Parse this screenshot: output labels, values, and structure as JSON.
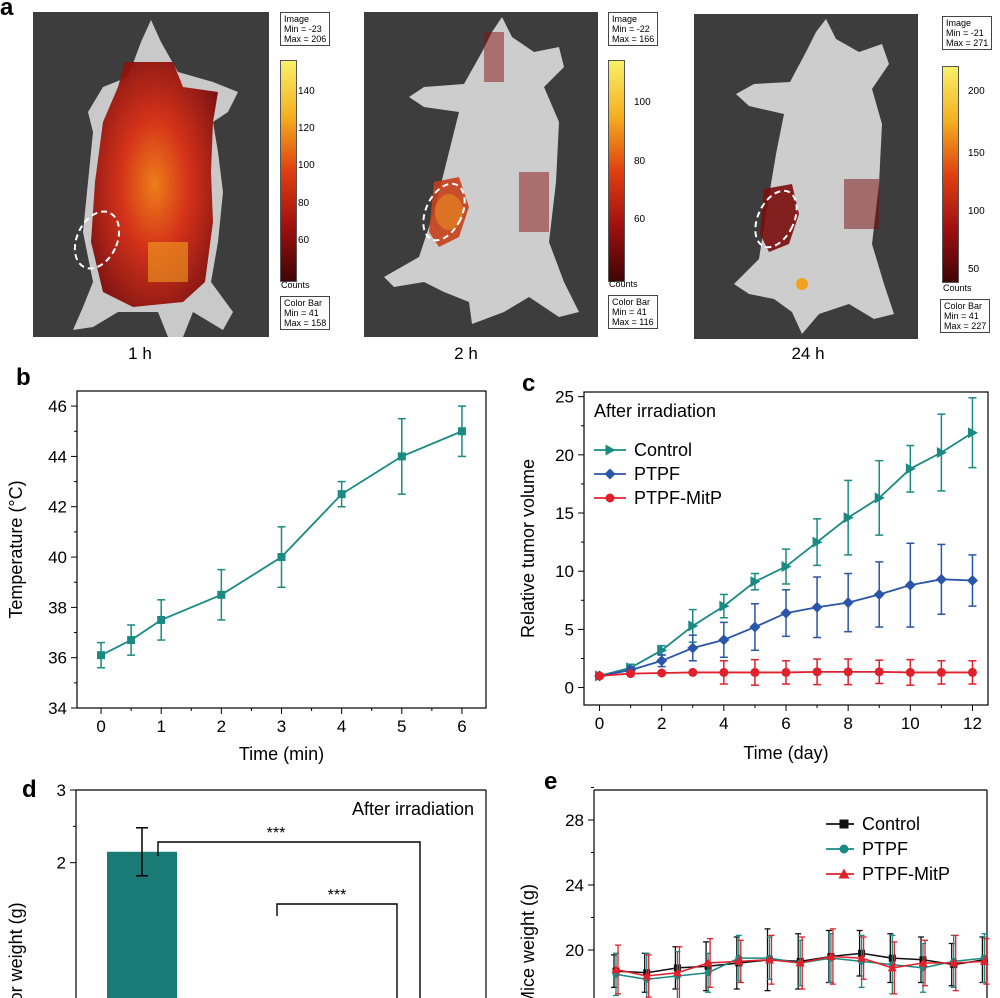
{
  "panel_a": {
    "letter": "a",
    "images": [
      {
        "time": "1 h",
        "image_box": [
          "Image",
          "Min = -23",
          "Max = 206"
        ],
        "colorbar_box": [
          "Color Bar",
          "Min = 41",
          "Max = 158"
        ],
        "ticks": [
          "140",
          "120",
          "100",
          "80",
          "60"
        ],
        "counts": "Counts"
      },
      {
        "time": "2 h",
        "image_box": [
          "Image",
          "Min = -22",
          "Max = 166"
        ],
        "colorbar_box": [
          "Color Bar",
          "Min = 41",
          "Max = 116"
        ],
        "ticks": [
          "100",
          "80",
          "60"
        ],
        "counts": "Counts"
      },
      {
        "time": "24 h",
        "image_box": [
          "Image",
          "Min = -21",
          "Max = 271"
        ],
        "colorbar_box": [
          "Color Bar",
          "Min = 41",
          "Max = 227"
        ],
        "ticks": [
          "200",
          "150",
          "100",
          "50"
        ],
        "counts": "Counts"
      }
    ]
  },
  "chart_data": [
    {
      "panel": "b",
      "type": "line",
      "xlabel": "Time (min)",
      "ylabel": "Temperature (°C)",
      "xlim": [
        -0.4,
        6.4
      ],
      "ylim": [
        34,
        46.6
      ],
      "xticks": [
        0,
        1,
        2,
        3,
        4,
        5,
        6
      ],
      "yticks": [
        34,
        36,
        38,
        40,
        42,
        44,
        46
      ],
      "color": "#1a8a84",
      "x": [
        0,
        0.5,
        1,
        2,
        3,
        4,
        5,
        6
      ],
      "y": [
        36.1,
        36.7,
        37.5,
        38.5,
        40.0,
        42.5,
        44.0,
        45.0
      ],
      "err": [
        0.5,
        0.6,
        0.8,
        1.0,
        1.2,
        0.5,
        1.5,
        1.0
      ]
    },
    {
      "panel": "c",
      "type": "line",
      "title": "After irradiation",
      "xlabel": "Time (day)",
      "ylabel": "Relative tumor volume",
      "xlim": [
        -0.5,
        12.5
      ],
      "ylim": [
        -1.5,
        25.4
      ],
      "xticks": [
        0,
        2,
        4,
        6,
        8,
        10,
        12
      ],
      "yticks": [
        0,
        5,
        10,
        15,
        20,
        25
      ],
      "legend": "top-left",
      "x": [
        0,
        1,
        2,
        3,
        4,
        5,
        6,
        7,
        8,
        9,
        10,
        11,
        12
      ],
      "series": [
        {
          "name": "Control",
          "color": "#1a8a84",
          "marker": "triangle-right",
          "values": [
            1.0,
            1.7,
            3.2,
            5.3,
            7.0,
            9.1,
            10.4,
            12.5,
            14.6,
            16.3,
            18.8,
            20.2,
            21.9
          ],
          "err": [
            0.2,
            0.3,
            0.4,
            1.4,
            1.0,
            0.7,
            1.5,
            2.0,
            3.2,
            3.2,
            2.0,
            3.3,
            3.0
          ]
        },
        {
          "name": "PTPF",
          "color": "#2a55a8",
          "marker": "diamond",
          "values": [
            1.0,
            1.5,
            2.3,
            3.4,
            4.1,
            5.2,
            6.4,
            6.9,
            7.3,
            8.0,
            8.8,
            9.3,
            9.2
          ],
          "err": [
            0.2,
            0.3,
            0.5,
            1.1,
            1.5,
            2.0,
            2.0,
            2.6,
            2.5,
            2.8,
            3.6,
            3.0,
            2.2
          ]
        },
        {
          "name": "PTPF-MitP",
          "color": "#e0202a",
          "marker": "circle",
          "values": [
            1.0,
            1.2,
            1.25,
            1.3,
            1.3,
            1.3,
            1.3,
            1.35,
            1.35,
            1.35,
            1.3,
            1.3,
            1.3
          ],
          "err": [
            0.1,
            0.1,
            0.1,
            0.1,
            1.0,
            1.1,
            1.0,
            1.1,
            1.1,
            1.0,
            1.1,
            1.0,
            1.0
          ]
        }
      ]
    },
    {
      "panel": "d",
      "type": "bar",
      "title": "After irradiation",
      "ylabel": "Tumor weight (g)",
      "ylim": [
        0,
        3
      ],
      "yticks": [
        2,
        3
      ],
      "color": "#1a7a76",
      "bar_value": 2.15,
      "bar_err": 0.33,
      "significance": [
        "***",
        "***"
      ]
    },
    {
      "panel": "e",
      "type": "line",
      "ylabel": "Mice weight (g)",
      "ylim": [
        15,
        29.5
      ],
      "yticks": [
        20,
        24,
        28
      ],
      "legend": "top-right",
      "x": [
        0,
        1,
        2,
        3,
        4,
        5,
        6,
        7,
        8,
        9,
        10,
        11,
        12
      ],
      "series": [
        {
          "name": "Control",
          "color": "#111111",
          "marker": "square",
          "values": [
            18.7,
            18.6,
            18.9,
            19.0,
            19.2,
            19.4,
            19.3,
            19.6,
            19.8,
            19.5,
            19.4,
            19.1,
            19.4
          ],
          "err": [
            1.0,
            1.2,
            1.3,
            1.5,
            1.6,
            1.9,
            1.7,
            1.6,
            1.4,
            1.5,
            1.4,
            1.3,
            1.4
          ]
        },
        {
          "name": "PTPF",
          "color": "#1a8a84",
          "marker": "circle",
          "values": [
            18.5,
            18.2,
            18.4,
            18.6,
            19.5,
            19.5,
            19.2,
            19.5,
            19.3,
            19.1,
            18.9,
            19.3,
            19.5
          ],
          "err": [
            1.3,
            1.6,
            1.5,
            1.2,
            1.4,
            1.3,
            1.4,
            1.5,
            1.6,
            1.8,
            1.5,
            1.6,
            1.5
          ]
        },
        {
          "name": "PTPF-MitP",
          "color": "#e0202a",
          "marker": "triangle",
          "values": [
            18.8,
            18.4,
            18.6,
            19.2,
            19.3,
            19.4,
            19.2,
            19.6,
            19.5,
            18.9,
            19.2,
            19.2,
            19.3
          ],
          "err": [
            1.5,
            1.3,
            1.6,
            1.5,
            1.3,
            1.5,
            1.6,
            1.7,
            1.3,
            1.6,
            1.4,
            1.7,
            1.4
          ]
        }
      ]
    }
  ]
}
